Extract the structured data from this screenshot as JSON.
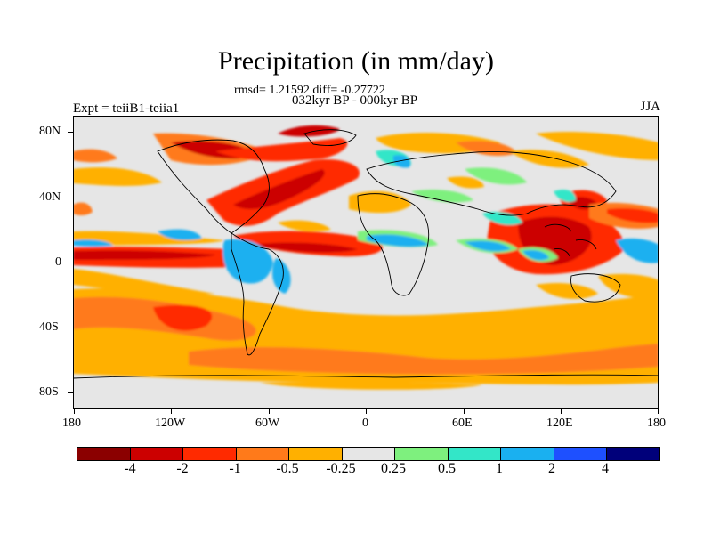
{
  "header": {
    "title": "Precipitation (in mm/day)",
    "stats": "rmsd= 1.21592  diff= -0.27722",
    "period": "032kyr BP - 000kyr BP",
    "experiment": "Expt = teiiB1-teiia1",
    "season": "JJA"
  },
  "map": {
    "lon_labels": [
      "180",
      "120W",
      "60W",
      "0",
      "60E",
      "120E",
      "180"
    ],
    "lat_labels": [
      "80N",
      "40N",
      "0",
      "40S",
      "80S"
    ],
    "background_color": "#e6e6e6"
  },
  "colorbar": {
    "labels": [
      "-4",
      "-2",
      "-1",
      "-0.5",
      "-0.25",
      "0.25",
      "0.5",
      "1",
      "2",
      "4"
    ],
    "colors": [
      "#8b0000",
      "#cc0000",
      "#ff2a00",
      "#ff7a1a",
      "#ffb000",
      "#e6e6e6",
      "#7ef07e",
      "#33e6c8",
      "#1ab0f0",
      "#1e50ff",
      "#00007a"
    ]
  }
}
